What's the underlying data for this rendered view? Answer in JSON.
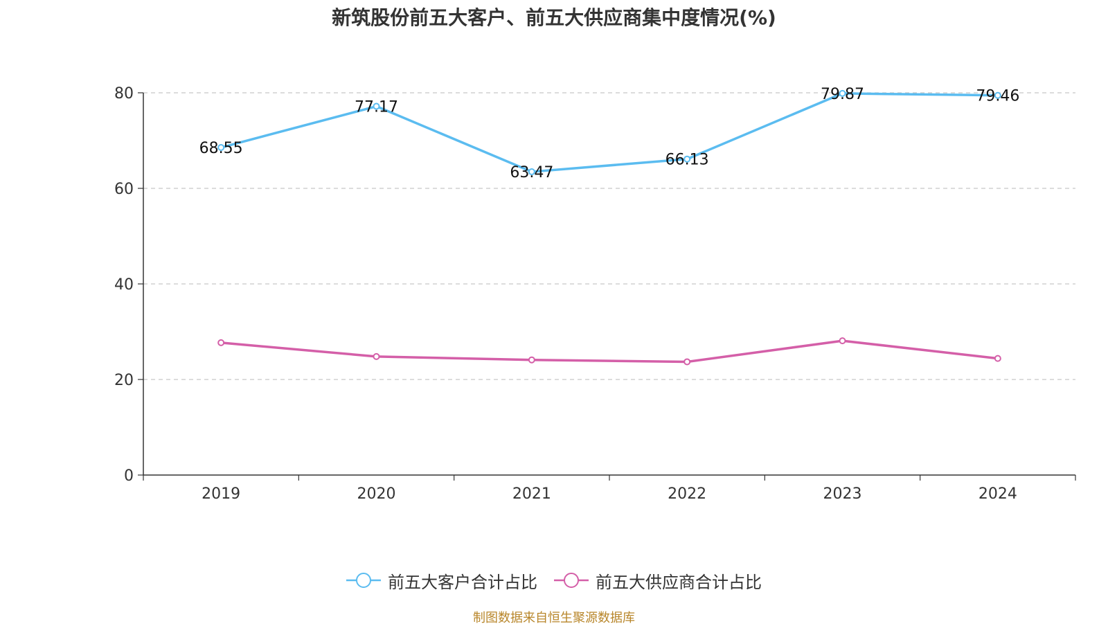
{
  "chart_data": {
    "type": "line",
    "title": "新筑股份前五大客户、前五大供应商集中度情况(%)",
    "categories": [
      "2019",
      "2020",
      "2021",
      "2022",
      "2023",
      "2024"
    ],
    "ylim": [
      0,
      80
    ],
    "yticks": [
      0,
      20,
      40,
      60,
      80
    ],
    "grid": true,
    "legend_position": "bottom",
    "series": [
      {
        "name": "前五大客户合计占比",
        "color": "#5bbcf0",
        "values": [
          68.55,
          77.17,
          63.47,
          66.13,
          79.87,
          79.46
        ],
        "labels": [
          "68.55",
          "77.17",
          "63.47",
          "66.13",
          "79.87",
          "79.46"
        ]
      },
      {
        "name": "前五大供应商合计占比",
        "color": "#d45fa8",
        "values": [
          27.7,
          24.8,
          24.1,
          23.7,
          28.1,
          24.4
        ],
        "labels": null
      }
    ],
    "source_note": "制图数据来自恒生聚源数据库"
  }
}
